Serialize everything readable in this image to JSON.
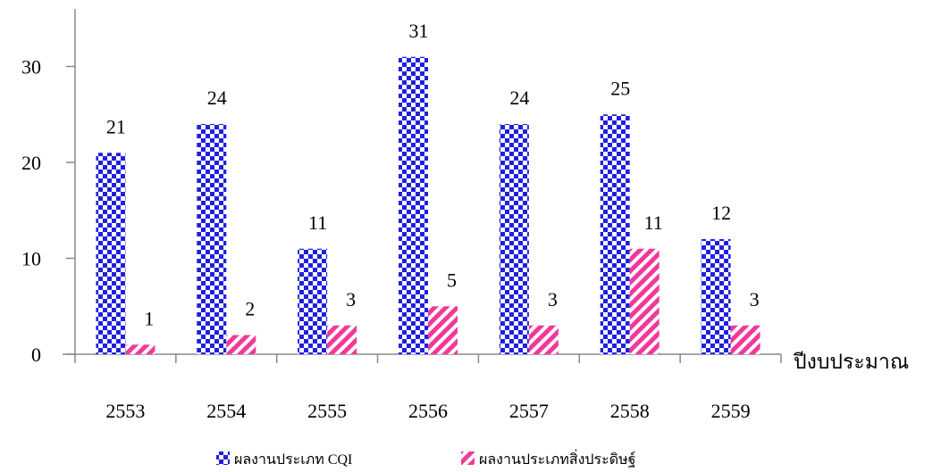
{
  "chart_data": {
    "type": "bar",
    "categories": [
      "2553",
      "2554",
      "2555",
      "2556",
      "2557",
      "2558",
      "2559"
    ],
    "series": [
      {
        "name": "ผลงานประเภท CQI",
        "values": [
          21,
          24,
          11,
          31,
          24,
          25,
          12
        ],
        "color": "#1f1fe0",
        "pattern": "checkerboard"
      },
      {
        "name": "ผลงานประเภทสิ่งประดิษฐ์",
        "values": [
          1,
          2,
          3,
          5,
          3,
          11,
          3
        ],
        "color": "#f0399a",
        "pattern": "diagonal-stripes"
      }
    ],
    "title": "",
    "xlabel": "ปีงบประมาณ",
    "ylabel": "",
    "ylim": [
      0,
      36
    ],
    "yticks": [
      0,
      10,
      20,
      30
    ],
    "grid": false,
    "legend_position": "bottom"
  }
}
